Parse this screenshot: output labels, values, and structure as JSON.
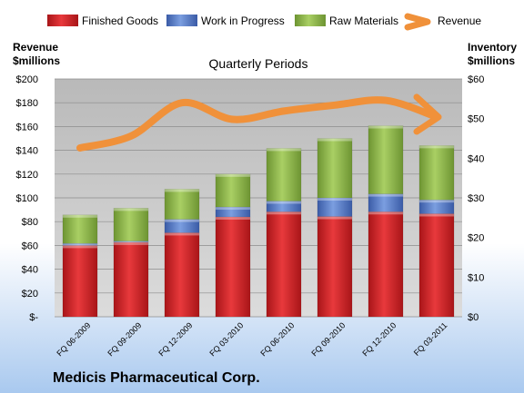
{
  "company": "Medicis Pharmaceutical Corp.",
  "chart_data": {
    "type": "bar",
    "subtype": "stacked bar with line overlay",
    "title": "Quarterly Periods",
    "y_left_label": [
      "Revenue",
      "$millions"
    ],
    "y_right_label": [
      "Inventory",
      "$millions"
    ],
    "categories": [
      "FQ 06-2009",
      "FQ 09-2009",
      "FQ 12-2009",
      "FQ 03-2010",
      "FQ 06-2010",
      "FQ 09-2010",
      "FQ 12-2010",
      "FQ 03-2011"
    ],
    "y_left_range": [
      0,
      200
    ],
    "y_left_ticks": [
      "$-",
      "$20",
      "$40",
      "$60",
      "$80",
      "$100",
      "$120",
      "$140",
      "$160",
      "$180",
      "$200"
    ],
    "y_right_range": [
      0,
      60
    ],
    "y_right_ticks": [
      "$0",
      "$10",
      "$20",
      "$30",
      "$40",
      "$50",
      "$60"
    ],
    "series": [
      {
        "name": "Finished Goods",
        "axis": "right",
        "kind": "bar",
        "color": "#d9262a",
        "values": [
          18.0,
          18.8,
          21.2,
          25.2,
          26.5,
          25.3,
          26.5,
          26.0
        ]
      },
      {
        "name": "Work in Progress",
        "axis": "right",
        "kind": "bar",
        "color": "#4f74c6",
        "values": [
          0.5,
          0.3,
          3.4,
          2.5,
          2.7,
          4.7,
          4.5,
          3.5
        ]
      },
      {
        "name": "Raw Materials",
        "axis": "right",
        "kind": "bar",
        "color": "#8fb84a",
        "values": [
          7.2,
          8.3,
          7.6,
          8.3,
          13.3,
          15.0,
          17.2,
          13.7
        ]
      },
      {
        "name": "Revenue",
        "axis": "left",
        "kind": "line",
        "color": "#f0913a",
        "values": [
          142,
          152,
          180,
          166,
          173,
          178,
          182,
          168
        ]
      }
    ],
    "legend_position": "top",
    "grid": true
  }
}
